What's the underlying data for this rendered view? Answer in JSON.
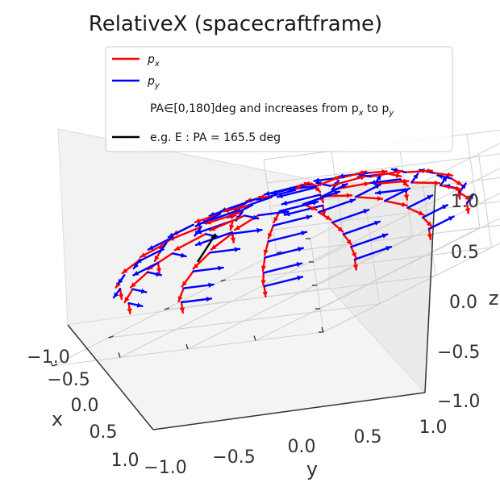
{
  "chart_data": {
    "type": "3d-vector-field",
    "title": "RelativeX (spacecraftframe)",
    "xlabel": "x",
    "ylabel": "y",
    "zlabel": "z",
    "xlim": [
      -1.0,
      1.0
    ],
    "ylim": [
      -1.0,
      1.0
    ],
    "zlim": [
      -1.0,
      1.0
    ],
    "x_ticks": [
      "−1.0",
      "−0.5",
      "0.0",
      "0.5",
      "1.0"
    ],
    "y_ticks": [
      "−1.0",
      "−0.5",
      "0.0",
      "0.5",
      "1.0"
    ],
    "z_ticks": [
      "−1.0",
      "−0.5",
      "0.0",
      "0.5",
      "1.0"
    ],
    "grid": true,
    "legend_position": "top",
    "legend": [
      {
        "label": "p",
        "sub": "x",
        "color": "#ff0000"
      },
      {
        "label": "p",
        "sub": "y",
        "color": "#0000ff"
      },
      {
        "label": "PA∈[0,180]deg and increases from p",
        "sub": "x",
        "label2": " to p",
        "sub2": "y",
        "color": "none"
      },
      {
        "label": "e.g. E : PA = 165.5 deg",
        "color": "#000000"
      }
    ],
    "hemisphere": {
      "z_range": [
        0.0,
        1.0
      ],
      "elevation_rings_deg": [
        0,
        15,
        30,
        45,
        60,
        75
      ],
      "azimuth_step_deg": 30
    },
    "example_vector": {
      "pa_deg": 165.5,
      "color": "#000000"
    },
    "series": [
      {
        "name": "p_x",
        "color": "#ff0000"
      },
      {
        "name": "p_y",
        "color": "#0000ff"
      }
    ]
  }
}
